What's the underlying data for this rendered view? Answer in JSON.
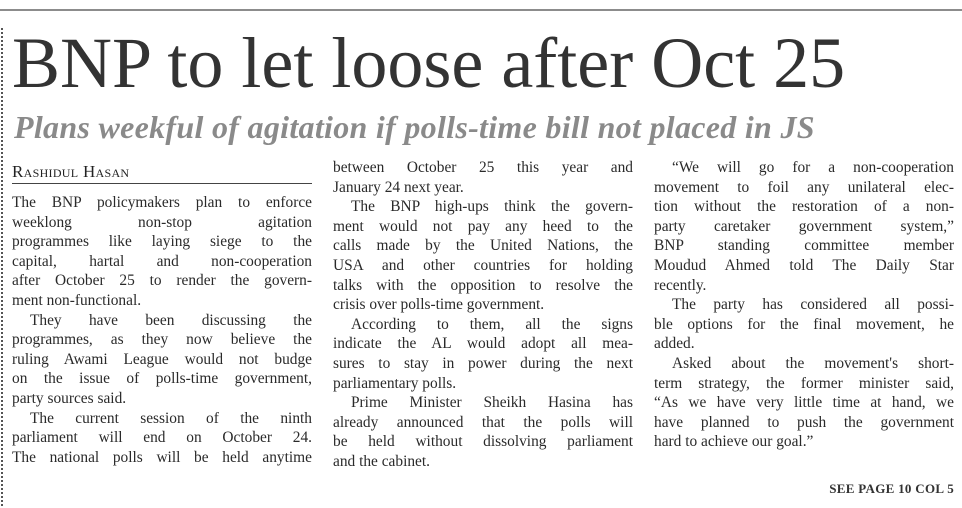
{
  "headline": "BNP to let loose after Oct 25",
  "subheadline": "Plans weekful of agitation if polls-time bill not placed in JS",
  "byline": "Rashidul Hasan",
  "columns": [
    {
      "lines": [
        {
          "t": "The BNP policymakers plan to enforce"
        },
        {
          "t": "weeklong non-stop agitation"
        },
        {
          "t": "programmes like laying siege to the"
        },
        {
          "t": "capital, hartal and non-cooperation"
        },
        {
          "t": "after October 25 to render the govern-"
        },
        {
          "t": "ment non-functional.",
          "last": true
        },
        {
          "t": "They have been discussing the",
          "indent": true
        },
        {
          "t": "programmes, as they now believe the"
        },
        {
          "t": "ruling Awami League would not budge"
        },
        {
          "t": "on the issue of polls-time government,"
        },
        {
          "t": "party sources said.",
          "last": true
        },
        {
          "t": "The current session of the ninth",
          "indent": true
        },
        {
          "t": "parliament will end on October 24."
        },
        {
          "t": "The national polls will be held anytime"
        }
      ]
    },
    {
      "lines": [
        {
          "t": "between October 25 this year and"
        },
        {
          "t": "January 24 next year.",
          "last": true
        },
        {
          "t": "The BNP high-ups think the govern-",
          "indent": true
        },
        {
          "t": "ment would not pay any heed to the"
        },
        {
          "t": "calls made by the United Nations, the"
        },
        {
          "t": "USA and other countries for holding"
        },
        {
          "t": "talks with the opposition to resolve the"
        },
        {
          "t": "crisis over polls-time government.",
          "last": true
        },
        {
          "t": "According to them, all the signs",
          "indent": true
        },
        {
          "t": "indicate the AL would adopt all mea-"
        },
        {
          "t": "sures to stay in power during the next"
        },
        {
          "t": "parliamentary polls.",
          "last": true
        },
        {
          "t": "Prime Minister Sheikh Hasina has",
          "indent": true
        },
        {
          "t": "already announced that the polls will"
        },
        {
          "t": "be held without dissolving parliament"
        },
        {
          "t": "and the cabinet.",
          "last": true
        }
      ]
    },
    {
      "lines": [
        {
          "t": "“We will go for a non-cooperation",
          "indent": true
        },
        {
          "t": "movement to foil any unilateral elec-"
        },
        {
          "t": "tion without the restoration of a non-"
        },
        {
          "t": "party caretaker government system,”"
        },
        {
          "t": "BNP standing committee member"
        },
        {
          "t": "Moudud Ahmed told The Daily Star"
        },
        {
          "t": "recently.",
          "last": true
        },
        {
          "t": "The party has considered all possi-",
          "indent": true
        },
        {
          "t": "ble options for the final movement, he"
        },
        {
          "t": "added.",
          "last": true
        },
        {
          "t": "Asked about the movement's short-",
          "indent": true
        },
        {
          "t": "term strategy, the former minister said,"
        },
        {
          "t": "“As we have very little time at hand, we"
        },
        {
          "t": "have planned to push the government"
        },
        {
          "t": "hard to achieve our goal.”",
          "last": true
        }
      ]
    }
  ],
  "jump": "SEE PAGE 10 COL 5"
}
